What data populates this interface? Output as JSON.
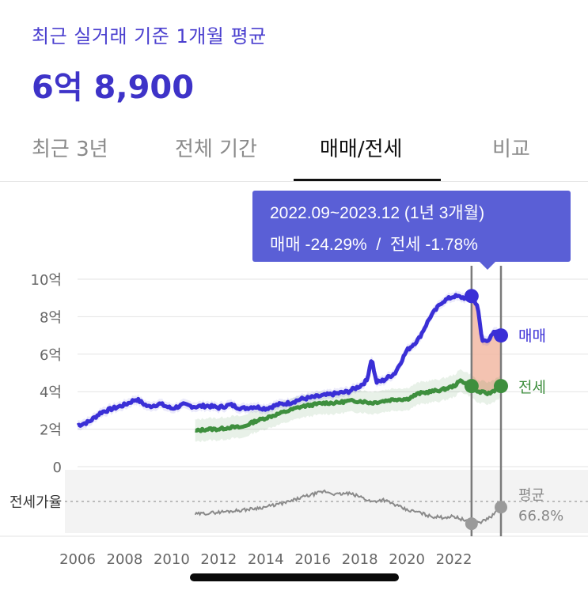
{
  "header": {
    "subtitle": "최근 실거래 기준 1개월 평균",
    "value": "6억 8,900"
  },
  "tabs": [
    {
      "label": "최근 3년",
      "active": false
    },
    {
      "label": "전체 기간",
      "active": false
    },
    {
      "label": "매매/전세",
      "active": true
    },
    {
      "label": "비교",
      "active": false
    }
  ],
  "colors": {
    "accent": "#3e33c8",
    "sale": "#3a2fd6",
    "jeonse": "#3e8f3e",
    "ratio": "#8a8a8a",
    "tooltip_bg": "#5a5fd6",
    "highlight": "#f2b9a3"
  },
  "tooltip": {
    "period": "2022.09~2023.12 (1년 3개월)",
    "change": "매매 -24.29%  /  전세 -1.78%"
  },
  "chart_data": {
    "type": "line",
    "ylim": [
      0,
      10
    ],
    "yticks": [
      {
        "value": 10,
        "label": "10억"
      },
      {
        "value": 8,
        "label": "8억"
      },
      {
        "value": 6,
        "label": "6억"
      },
      {
        "value": 4,
        "label": "4억"
      },
      {
        "value": 2,
        "label": "2억"
      },
      {
        "value": 0,
        "label": "0"
      }
    ],
    "xlim": [
      2006,
      2024.2
    ],
    "xticks": [
      2006,
      2008,
      2010,
      2012,
      2014,
      2016,
      2018,
      2020,
      2022
    ],
    "series": [
      {
        "name": "매매",
        "unit": "억",
        "x": [
          2006,
          2006.5,
          2007,
          2007.5,
          2008,
          2008.5,
          2009,
          2009.5,
          2010,
          2010.5,
          2011,
          2011.5,
          2012,
          2012.5,
          2013,
          2013.5,
          2014,
          2014.5,
          2015,
          2015.5,
          2016,
          2016.5,
          2017,
          2017.5,
          2018,
          2018.3,
          2018.5,
          2018.7,
          2019,
          2019.5,
          2020,
          2020.5,
          2021,
          2021.5,
          2022,
          2022.5,
          2022.75,
          2023,
          2023.2,
          2023.5,
          2023.75,
          2024
        ],
        "y": [
          2.2,
          2.4,
          2.9,
          3.1,
          3.3,
          3.6,
          3.2,
          3.35,
          3.1,
          3.3,
          3.2,
          3.25,
          3.15,
          3.3,
          3.1,
          3.2,
          3.1,
          3.3,
          3.4,
          3.6,
          3.7,
          3.8,
          3.9,
          4.0,
          4.3,
          4.6,
          5.8,
          4.5,
          4.6,
          5.0,
          6.2,
          6.8,
          8.0,
          8.8,
          9.1,
          9.0,
          9.1,
          8.6,
          6.7,
          6.8,
          7.2,
          7.0
        ]
      },
      {
        "name": "전세",
        "unit": "억",
        "x": [
          2011,
          2011.5,
          2012,
          2012.5,
          2013,
          2013.5,
          2014,
          2014.5,
          2015,
          2015.5,
          2016,
          2016.5,
          2017,
          2017.5,
          2018,
          2018.5,
          2019,
          2019.5,
          2020,
          2020.5,
          2021,
          2021.5,
          2022,
          2022.3,
          2022.75,
          2023,
          2023.5,
          2024
        ],
        "y": [
          1.9,
          2.0,
          2.0,
          2.1,
          2.1,
          2.4,
          2.6,
          2.8,
          3.0,
          3.2,
          3.3,
          3.4,
          3.4,
          3.5,
          3.5,
          3.4,
          3.5,
          3.6,
          3.6,
          3.9,
          4.0,
          4.1,
          4.3,
          4.6,
          4.3,
          4.0,
          3.9,
          4.3
        ]
      },
      {
        "name": "전세가율",
        "x": [
          2011,
          2012,
          2013,
          2014,
          2015,
          2015.5,
          2016,
          2016.5,
          2017,
          2017.5,
          2018,
          2018.5,
          2019,
          2019.5,
          2020,
          2020.5,
          2021,
          2021.5,
          2022,
          2022.5,
          2022.75,
          2023.2,
          2023.6,
          2024
        ],
        "y": [
          60,
          62,
          64,
          67,
          72,
          76,
          79,
          82,
          79,
          80,
          77,
          72,
          74,
          69,
          64,
          62,
          58,
          57,
          58,
          54,
          51,
          53,
          58,
          66.8
        ]
      }
    ],
    "ratio_label": "전세가율",
    "ratio_avg_label": "평균",
    "ratio_avg_value": "66.8%",
    "ratio_ylim": [
      45,
      95
    ],
    "highlight_range": [
      2022.75,
      2024
    ],
    "end_labels": [
      "매매",
      "전세"
    ]
  }
}
